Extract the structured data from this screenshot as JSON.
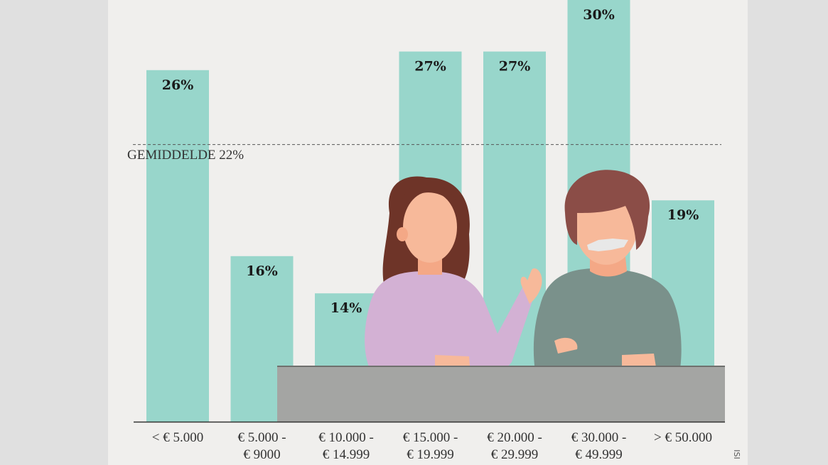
{
  "chart_data": {
    "type": "bar",
    "categories": [
      "< € 5.000",
      "€ 5.000 -\n€ 9000",
      "€ 10.000 -\n€ 14.999",
      "€ 15.000 -\n€ 19.999",
      "€ 20.000 -\n€ 29.999",
      "€ 30.000 -\n€ 49.999",
      "> € 50.000"
    ],
    "values": [
      26,
      16,
      14,
      27,
      27,
      30,
      19
    ],
    "value_labels": [
      "26%",
      "16%",
      "14%",
      "27%",
      "27%",
      "30%",
      "19%"
    ],
    "color": "#98d6cb",
    "ylim": [
      7.1,
      29.77
    ],
    "reference_line": {
      "value": 22,
      "label": "GEMIDDELDE 22%"
    },
    "credit": "ISI"
  }
}
